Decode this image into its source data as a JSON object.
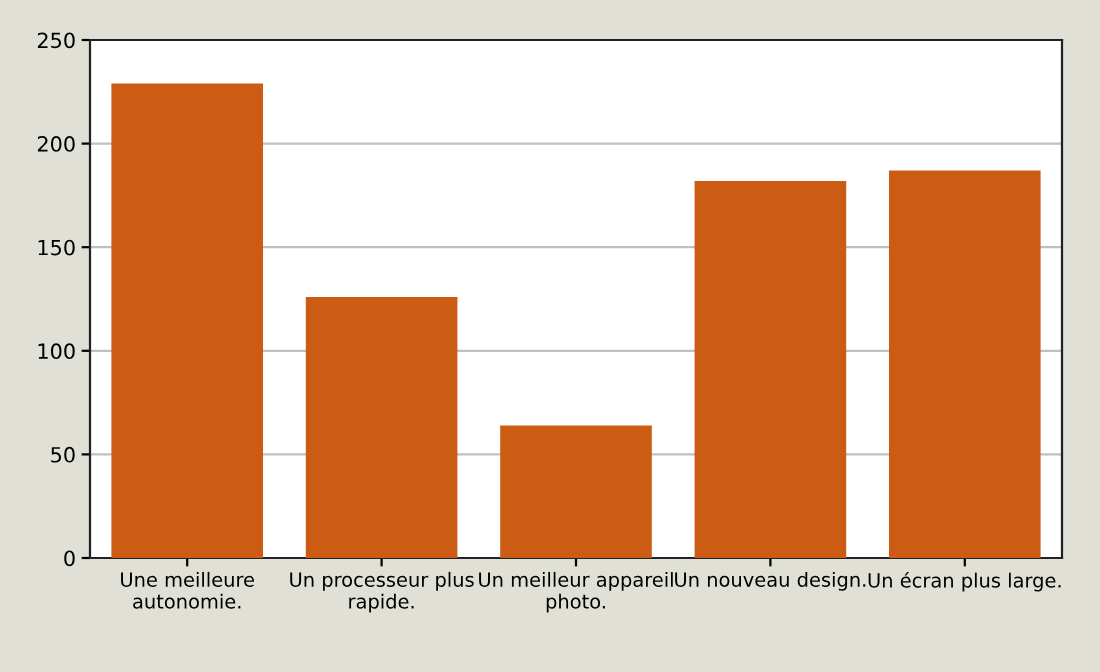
{
  "chart_data": {
    "type": "bar",
    "categories": [
      "Une meilleure\nautonomie.",
      "Un processeur plus\nrapide.",
      "Un meilleur appareil\nphoto.",
      "Un nouveau design.",
      "Un écran plus large."
    ],
    "values": [
      229,
      126,
      64,
      182,
      187
    ],
    "color": "#cc5c14",
    "ylim": [
      0,
      250
    ],
    "yticks": [
      0,
      50,
      100,
      150,
      200,
      250
    ],
    "grid": "y",
    "legend": false
  }
}
